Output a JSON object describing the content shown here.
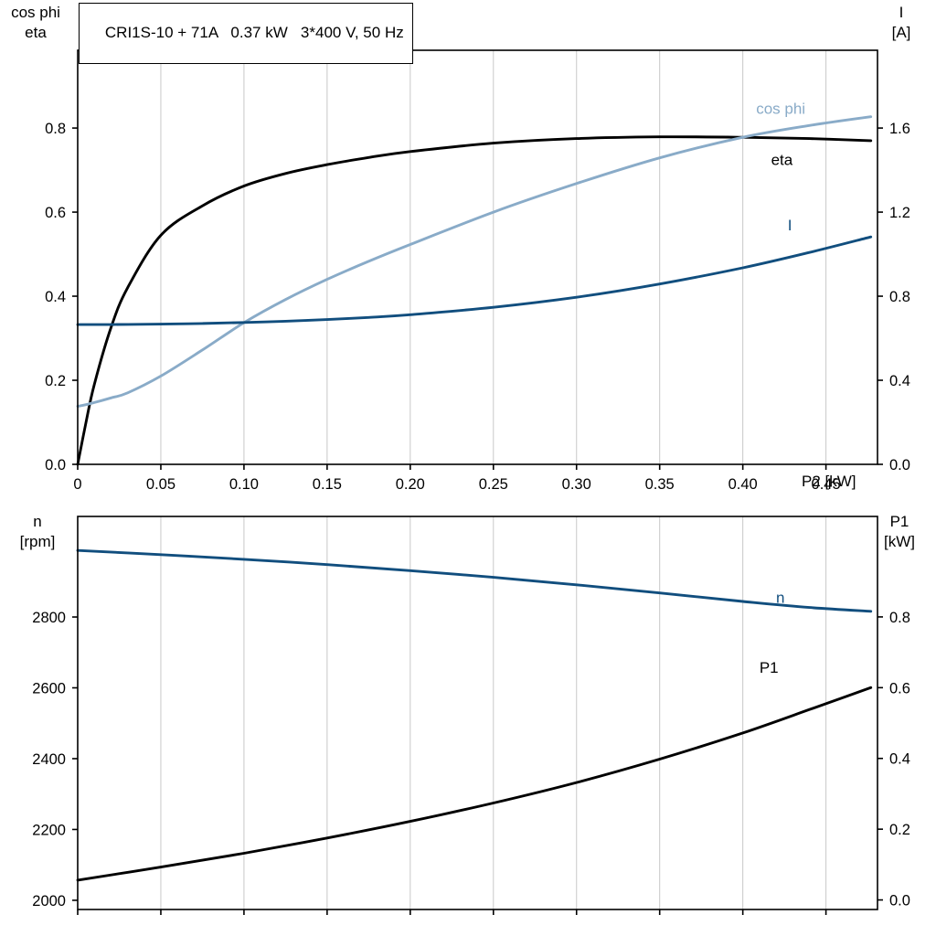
{
  "colors": {
    "black": "#000000",
    "dark_blue": "#114e7e",
    "light_blue": "#89abc8",
    "grid": "#c8c8c8",
    "frame": "#000000"
  },
  "chart_data": [
    {
      "type": "line",
      "panel": "top",
      "title": "CRI1S-10 + 71A   0.37 kW   3*400 V, 50 Hz",
      "xlabel": "P2 [kW]",
      "left_axis_title_lines": [
        "cos phi",
        "eta"
      ],
      "right_axis_title_lines": [
        "I",
        "[A]"
      ],
      "xlim": [
        0,
        0.481
      ],
      "left_ylim": [
        0,
        0.985
      ],
      "right_ylim": [
        0,
        1.97
      ],
      "xticks": [
        0,
        0.05,
        0.1,
        0.15,
        0.2,
        0.25,
        0.3,
        0.35,
        0.4,
        0.45
      ],
      "xtick_labels": [
        "0",
        "0.05",
        "0.10",
        "0.15",
        "0.20",
        "0.25",
        "0.30",
        "0.35",
        "0.40",
        "0.45"
      ],
      "left_yticks": [
        0,
        0.2,
        0.4,
        0.6,
        0.8
      ],
      "left_ytick_labels": [
        "0.0",
        "0.2",
        "0.4",
        "0.6",
        "0.8"
      ],
      "right_yticks": [
        0,
        0.4,
        0.8,
        1.2,
        1.6
      ],
      "right_ytick_labels": [
        "0.0",
        "0.4",
        "0.8",
        "1.2",
        "1.6"
      ],
      "grid": "vertical",
      "legend_position": "inline-labels",
      "series": [
        {
          "name": "eta",
          "label": "eta",
          "axis": "left",
          "color": "black",
          "label_at": [
            0.417,
            0.725
          ],
          "x": [
            0,
            0.005,
            0.01,
            0.02,
            0.03,
            0.05,
            0.075,
            0.1,
            0.125,
            0.15,
            0.175,
            0.2,
            0.25,
            0.3,
            0.35,
            0.4,
            0.44,
            0.477
          ],
          "y": [
            0,
            0.1,
            0.19,
            0.325,
            0.42,
            0.545,
            0.615,
            0.662,
            0.692,
            0.713,
            0.73,
            0.744,
            0.764,
            0.775,
            0.779,
            0.778,
            0.775,
            0.77
          ]
        },
        {
          "name": "cos phi",
          "label": "cos phi",
          "axis": "left",
          "color": "light_blue",
          "label_at": [
            0.408,
            0.847
          ],
          "x": [
            0,
            0.005,
            0.01,
            0.02,
            0.03,
            0.05,
            0.075,
            0.1,
            0.125,
            0.15,
            0.175,
            0.2,
            0.25,
            0.3,
            0.35,
            0.4,
            0.44,
            0.477
          ],
          "y": [
            0.138,
            0.142,
            0.147,
            0.158,
            0.17,
            0.21,
            0.272,
            0.337,
            0.392,
            0.44,
            0.483,
            0.523,
            0.6,
            0.668,
            0.729,
            0.778,
            0.806,
            0.827
          ]
        },
        {
          "name": "I",
          "label": "I",
          "axis": "right",
          "color": "dark_blue",
          "label_at": [
            0.427,
            1.14
          ],
          "x": [
            0,
            0.005,
            0.01,
            0.02,
            0.03,
            0.05,
            0.075,
            0.1,
            0.125,
            0.15,
            0.175,
            0.2,
            0.25,
            0.3,
            0.35,
            0.4,
            0.44,
            0.477
          ],
          "y": [
            0.665,
            0.665,
            0.665,
            0.665,
            0.666,
            0.667,
            0.67,
            0.675,
            0.681,
            0.689,
            0.699,
            0.712,
            0.747,
            0.795,
            0.858,
            0.935,
            1.008,
            1.082
          ]
        }
      ]
    },
    {
      "type": "line",
      "panel": "bottom",
      "title": "",
      "xlabel": "",
      "left_axis_title_lines": [
        "n",
        "[rpm]"
      ],
      "right_axis_title_lines": [
        "P1",
        "[kW]"
      ],
      "xlim": [
        0,
        0.481
      ],
      "left_ylim": [
        1974,
        3084
      ],
      "right_ylim": [
        -0.027,
        1.084
      ],
      "xticks": [
        0,
        0.05,
        0.1,
        0.15,
        0.2,
        0.25,
        0.3,
        0.35,
        0.4,
        0.45
      ],
      "xtick_labels": [],
      "left_yticks": [
        2000,
        2200,
        2400,
        2600,
        2800
      ],
      "left_ytick_labels": [
        "2000",
        "2200",
        "2400",
        "2600",
        "2800"
      ],
      "right_yticks": [
        0,
        0.2,
        0.4,
        0.6,
        0.8
      ],
      "right_ytick_labels": [
        "0.0",
        "0.2",
        "0.4",
        "0.6",
        "0.8"
      ],
      "grid": "vertical",
      "legend_position": "inline-labels",
      "series": [
        {
          "name": "n",
          "label": "n",
          "axis": "left",
          "color": "dark_blue",
          "label_at": [
            0.42,
            2856
          ],
          "x": [
            0,
            0.05,
            0.1,
            0.15,
            0.2,
            0.25,
            0.3,
            0.35,
            0.4,
            0.44,
            0.477
          ],
          "y": [
            2988,
            2976,
            2963,
            2948,
            2931,
            2912,
            2891,
            2868,
            2844,
            2827,
            2816
          ]
        },
        {
          "name": "P1",
          "label": "P1",
          "axis": "right",
          "color": "black",
          "label_at": [
            0.41,
            0.658
          ],
          "x": [
            0,
            0.05,
            0.1,
            0.15,
            0.2,
            0.25,
            0.3,
            0.35,
            0.4,
            0.44,
            0.477
          ],
          "y": [
            0.056,
            0.093,
            0.132,
            0.175,
            0.222,
            0.274,
            0.332,
            0.398,
            0.472,
            0.538,
            0.6
          ]
        }
      ]
    }
  ]
}
